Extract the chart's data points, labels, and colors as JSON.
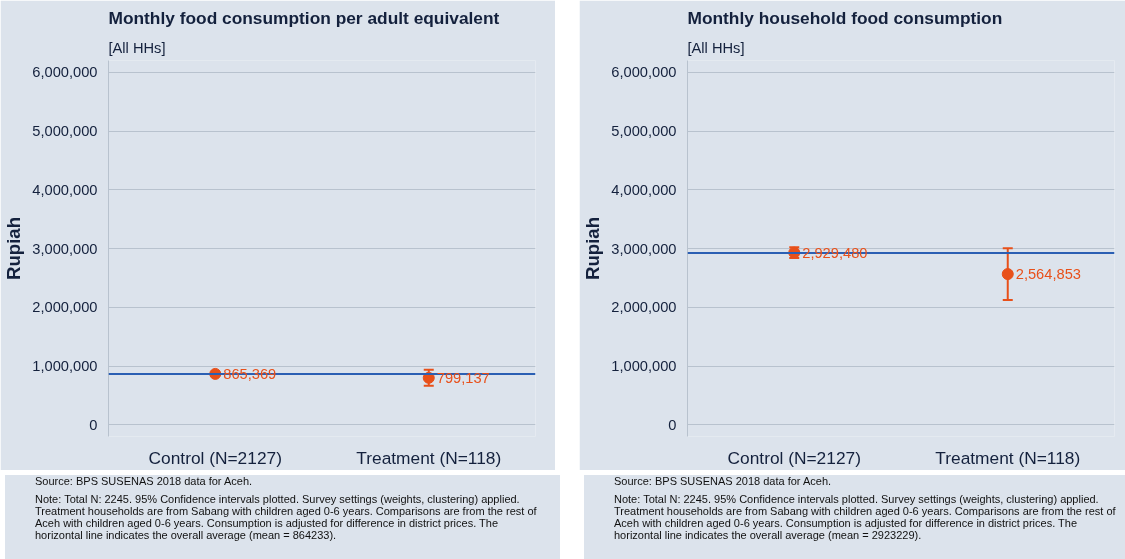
{
  "chart_data": [
    {
      "type": "scatter",
      "title": "Monthly food consumption per adult equivalent",
      "subtitle": "[All HHs]",
      "ylabel": "Rupiah",
      "categories": [
        "Control (N=2127)",
        "Treatment (N=118)"
      ],
      "series": [
        {
          "color": "#e8501a",
          "values": [
            865369,
            799137
          ],
          "value_labels": [
            "865,369",
            "799,137"
          ],
          "errors": [
            15000,
            137000
          ]
        }
      ],
      "ylim": [
        -200000,
        6200000
      ],
      "yticks": [
        {
          "value": 0,
          "label": "0"
        },
        {
          "value": 1000000,
          "label": "1,000,000"
        },
        {
          "value": 2000000,
          "label": "2,000,000"
        },
        {
          "value": 3000000,
          "label": "3,000,000"
        },
        {
          "value": 4000000,
          "label": "4,000,000"
        },
        {
          "value": 5000000,
          "label": "5,000,000"
        },
        {
          "value": 6000000,
          "label": "6,000,000"
        }
      ],
      "grid": "y",
      "marker": "circle",
      "ref_lines": [
        {
          "axis": "y",
          "value": 864233,
          "color": "#2b5fb3"
        }
      ],
      "annotations": [
        "Source: BPS SUSENAS 2018 data for Aceh.",
        "Note: Total N: 2245. 95% Confidence intervals plotted. Survey settings (weights, clustering) applied. Treatment households are from Sabang with children aged 0-6 years. Comparisons are from the rest of Aceh with children aged 0-6 years. Consumption is adjusted for difference in district prices. The horizontal line indicates the overall average (mean = 864233)."
      ]
    },
    {
      "type": "scatter",
      "title": "Monthly household food consumption",
      "subtitle": "[All HHs]",
      "ylabel": "Rupiah",
      "categories": [
        "Control (N=2127)",
        "Treatment (N=118)"
      ],
      "series": [
        {
          "color": "#e8501a",
          "values": [
            2929480,
            2564853
          ],
          "value_labels": [
            "2,929,480",
            "2,564,853"
          ],
          "errors": [
            90000,
            440000
          ]
        }
      ],
      "ylim": [
        -200000,
        6200000
      ],
      "yticks": [
        {
          "value": 0,
          "label": "0"
        },
        {
          "value": 1000000,
          "label": "1,000,000"
        },
        {
          "value": 2000000,
          "label": "2,000,000"
        },
        {
          "value": 3000000,
          "label": "3,000,000"
        },
        {
          "value": 4000000,
          "label": "4,000,000"
        },
        {
          "value": 5000000,
          "label": "5,000,000"
        },
        {
          "value": 6000000,
          "label": "6,000,000"
        }
      ],
      "grid": "y",
      "marker": "circle",
      "ref_lines": [
        {
          "axis": "y",
          "value": 2923229,
          "color": "#2b5fb3"
        }
      ],
      "annotations": [
        "Source: BPS SUSENAS 2018 data for Aceh.",
        "Note: Total N: 2245. 95% Confidence intervals plotted. Survey settings (weights, clustering) applied. Treatment households are from Sabang with children aged 0-6 years. Comparisons are from the rest of Aceh with children aged 0-6 years. Consumption is adjusted for difference in district prices. The horizontal line indicates the overall average (mean = 2923229)."
      ]
    }
  ]
}
